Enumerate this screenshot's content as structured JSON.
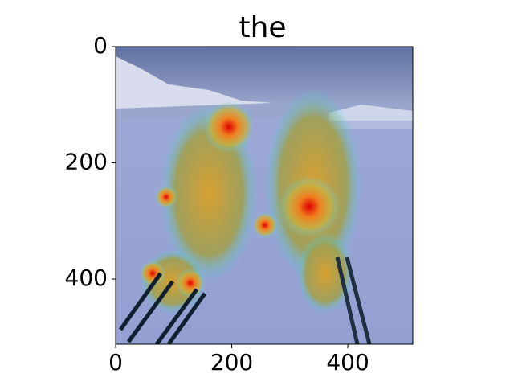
{
  "chart_data": {
    "type": "image",
    "title": "the",
    "xlim": [
      0,
      512
    ],
    "ylim": [
      512,
      0
    ],
    "xticks": [
      0,
      200,
      400
    ],
    "yticks": [
      0,
      200,
      400
    ]
  }
}
